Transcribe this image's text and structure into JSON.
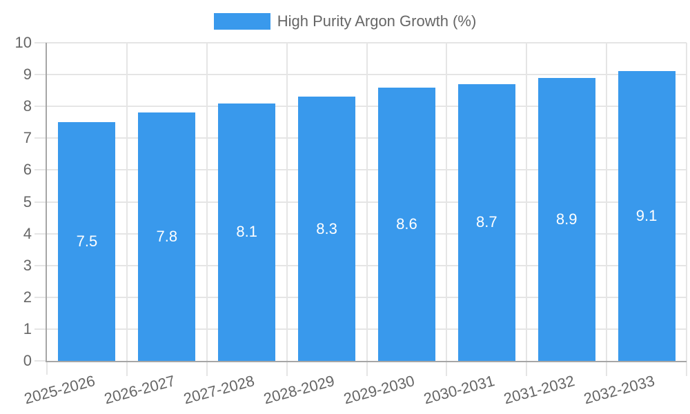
{
  "chart_data": {
    "type": "bar",
    "legend": {
      "label": "High Purity Argon Growth (%)",
      "position": "top"
    },
    "categories": [
      "2025-2026",
      "2026-2027",
      "2027-2028",
      "2028-2029",
      "2029-2030",
      "2030-2031",
      "2031-2032",
      "2032-2033"
    ],
    "series": [
      {
        "name": "High Purity Argon Growth (%)",
        "values": [
          7.5,
          7.8,
          8.1,
          8.3,
          8.6,
          8.7,
          8.9,
          9.1
        ],
        "value_labels": [
          "7.5",
          "7.8",
          "8.1",
          "8.3",
          "8.6",
          "8.7",
          "8.9",
          "9.1"
        ]
      }
    ],
    "xlabel": "",
    "ylabel": "",
    "ylim": [
      0,
      10
    ],
    "ytick_step": 1,
    "grid": true,
    "x_label_rotation_deg": -15,
    "colors": {
      "bar": "#3999EC",
      "text": "#666666",
      "value_label": "#FFFFFF",
      "grid": "#E5E5E5",
      "axis": "#A6A6A6",
      "background": "#FFFFFF"
    }
  }
}
